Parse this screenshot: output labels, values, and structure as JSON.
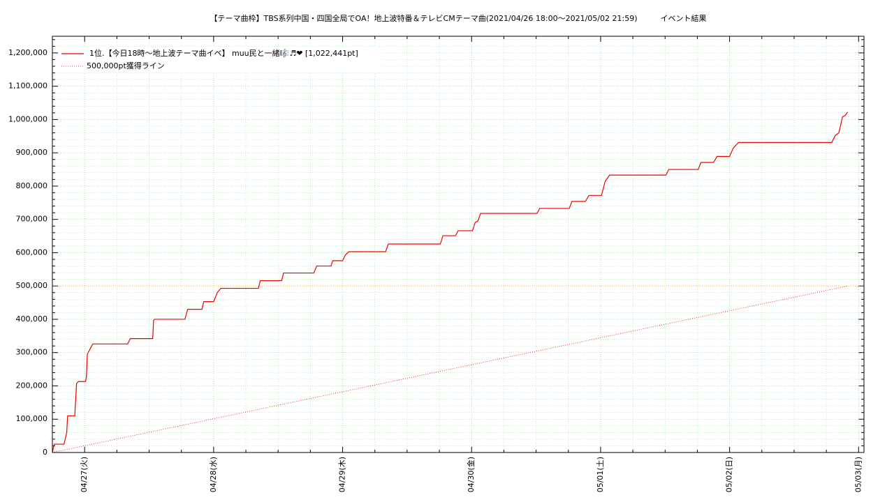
{
  "chart_data": {
    "type": "line",
    "title": "【テーマ曲枠】TBS系列中国・四国全局でOA！地上波特番＆テレビCMテーマ曲(2021/04/26 18:00〜2021/05/02 21:59)　　　イベント結果",
    "xlim": [
      "2021-04-26 18:00",
      "2021-05-03 01:00"
    ],
    "xticks": [
      {
        "value": "2021-04-27 00:00",
        "label": "04/27(火)"
      },
      {
        "value": "2021-04-28 00:00",
        "label": "04/28(水)"
      },
      {
        "value": "2021-04-29 00:00",
        "label": "04/29(木)"
      },
      {
        "value": "2021-04-30 00:00",
        "label": "04/30(金)"
      },
      {
        "value": "2021-05-01 00:00",
        "label": "05/01(土)"
      },
      {
        "value": "2021-05-02 00:00",
        "label": "05/02(日)"
      },
      {
        "value": "2021-05-03 00:00",
        "label": "05/03(月)"
      }
    ],
    "ylim": [
      0,
      1250000
    ],
    "yticks": [
      0,
      {
        "value": 100000,
        "label": "100,000"
      },
      {
        "value": 200000,
        "label": "200,000"
      },
      {
        "value": 300000,
        "label": "300,000"
      },
      {
        "value": 400000,
        "label": "400,000"
      },
      {
        "value": 500000,
        "label": "500,000"
      },
      {
        "value": 600000,
        "label": "600,000"
      },
      {
        "value": 700000,
        "label": "700,000"
      },
      {
        "value": 800000,
        "label": "800,000"
      },
      {
        "value": 900000,
        "label": "900,000"
      },
      {
        "value": 1000000,
        "label": "1,000,000"
      },
      {
        "value": 1100000,
        "label": "1,100,000"
      },
      {
        "value": 1200000,
        "label": "1,200,000"
      }
    ],
    "grid": true,
    "grid_color": "#66dd66",
    "minor_grid": true,
    "hline": 500000,
    "hline_color": "#ff9900",
    "legend": "upper left",
    "series": [
      {
        "name": "1位.【今日18時〜地上波テーマ曲イベ】 muu民と一緒🎼♬❤ [1,022,441pt]",
        "color": "#ee0000",
        "style": "solid",
        "x": [
          "2021-04-26 18:00",
          "2021-04-26 18:20",
          "2021-04-26 20:10",
          "2021-04-26 20:40",
          "2021-04-26 20:50",
          "2021-04-26 22:10",
          "2021-04-26 22:30",
          "2021-04-26 22:50",
          "2021-04-27 00:10",
          "2021-04-27 00:20",
          "2021-04-27 00:30",
          "2021-04-27 01:30",
          "2021-04-27 08:00",
          "2021-04-27 08:30",
          "2021-04-27 12:40",
          "2021-04-27 12:50",
          "2021-04-27 13:00",
          "2021-04-27 18:40",
          "2021-04-27 19:10",
          "2021-04-27 21:50",
          "2021-04-27 22:10",
          "2021-04-28 00:00",
          "2021-04-28 00:40",
          "2021-04-28 01:20",
          "2021-04-28 08:20",
          "2021-04-28 08:40",
          "2021-04-28 12:40",
          "2021-04-28 13:00",
          "2021-04-28 18:40",
          "2021-04-28 19:10",
          "2021-04-28 21:50",
          "2021-04-28 22:10",
          "2021-04-29 00:00",
          "2021-04-29 00:30",
          "2021-04-29 01:10",
          "2021-04-29 08:00",
          "2021-04-29 08:30",
          "2021-04-29 18:10",
          "2021-04-29 18:40",
          "2021-04-29 21:00",
          "2021-04-29 21:30",
          "2021-04-30 00:10",
          "2021-04-30 00:40",
          "2021-04-30 01:10",
          "2021-04-30 01:40",
          "2021-04-30 12:10",
          "2021-04-30 12:40",
          "2021-04-30 18:10",
          "2021-04-30 18:40",
          "2021-04-30 21:10",
          "2021-04-30 21:50",
          "2021-05-01 00:10",
          "2021-05-01 00:50",
          "2021-05-01 01:40",
          "2021-05-01 12:10",
          "2021-05-01 12:40",
          "2021-05-01 18:10",
          "2021-05-01 18:40",
          "2021-05-01 21:00",
          "2021-05-01 21:40",
          "2021-05-02 00:00",
          "2021-05-02 00:40",
          "2021-05-02 01:40",
          "2021-05-02 19:00",
          "2021-05-02 19:40",
          "2021-05-02 20:20",
          "2021-05-02 20:40",
          "2021-05-02 21:00",
          "2021-05-02 21:30",
          "2021-05-02 21:59"
        ],
        "values": [
          0,
          25000,
          25000,
          60000,
          110000,
          110000,
          207000,
          213000,
          213000,
          228000,
          295000,
          326000,
          326000,
          342000,
          342000,
          397000,
          400000,
          400000,
          430000,
          430000,
          453000,
          453000,
          480000,
          493000,
          493000,
          516000,
          516000,
          539000,
          539000,
          560000,
          560000,
          576000,
          576000,
          593000,
          603000,
          603000,
          626000,
          626000,
          651000,
          651000,
          666000,
          666000,
          691000,
          695000,
          718000,
          718000,
          733000,
          733000,
          754000,
          754000,
          772000,
          772000,
          814000,
          833000,
          833000,
          850000,
          850000,
          871000,
          871000,
          889000,
          889000,
          914000,
          931000,
          931000,
          952000,
          960000,
          983000,
          1008000,
          1012000,
          1022441
        ]
      },
      {
        "name": "500,000pt獲得ライン",
        "color": "#ee0000",
        "style": "dotted",
        "x": [
          "2021-04-26 18:00",
          "2021-05-02 21:59"
        ],
        "values": [
          0,
          500000
        ]
      }
    ]
  }
}
